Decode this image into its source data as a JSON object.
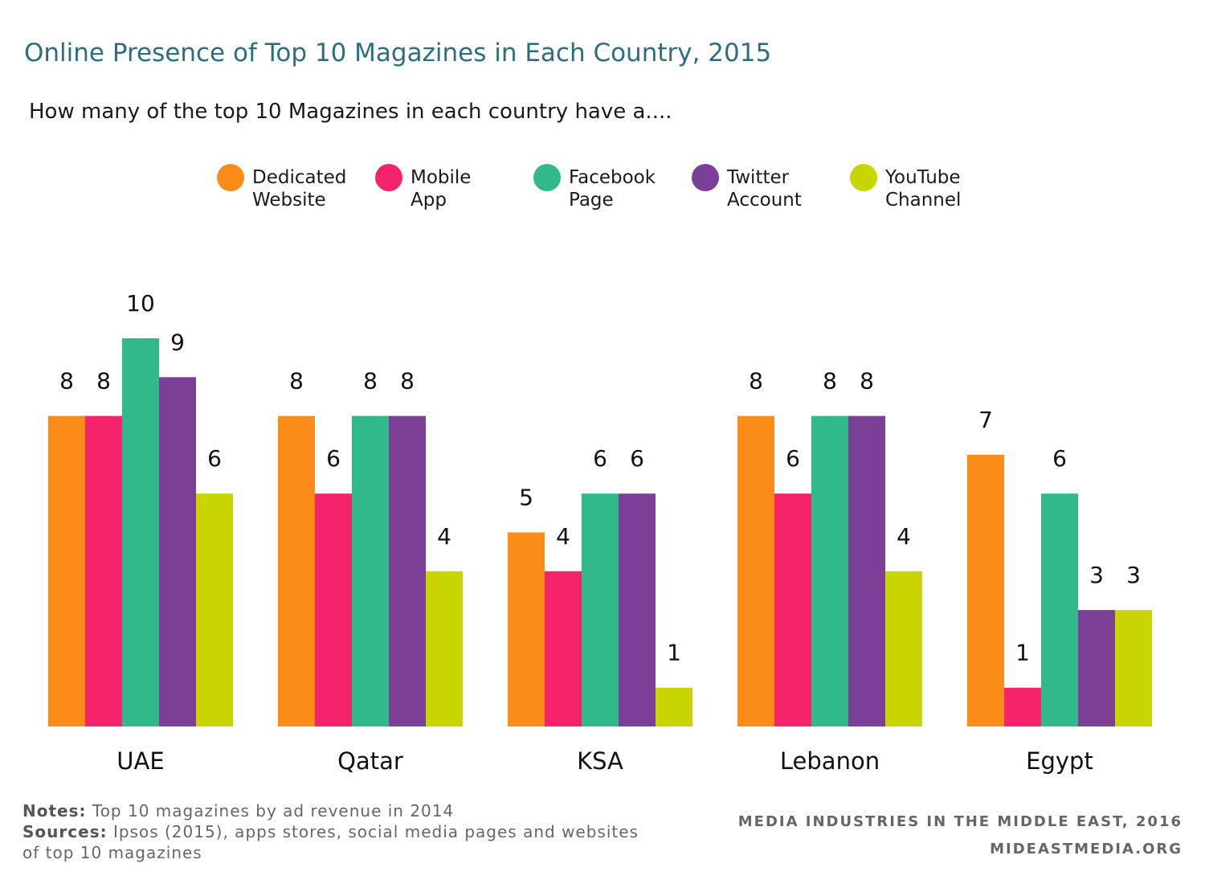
{
  "title": "Online Presence of Top 10 Magazines in Each Country, 2015",
  "subtitle": "How many of the top 10 Magazines in each country have a....",
  "chart_data": {
    "type": "bar",
    "categories": [
      "UAE",
      "Qatar",
      "KSA",
      "Lebanon",
      "Egypt"
    ],
    "series": [
      {
        "name": "Dedicated\nWebsite",
        "color": "#fb8c17",
        "values": [
          8,
          8,
          5,
          8,
          7
        ]
      },
      {
        "name": "Mobile\nApp",
        "color": "#f5236b",
        "values": [
          8,
          6,
          4,
          6,
          1
        ]
      },
      {
        "name": "Facebook\nPage",
        "color": "#31b98c",
        "values": [
          10,
          8,
          6,
          8,
          6
        ]
      },
      {
        "name": "Twitter\nAccount",
        "color": "#7c3f97",
        "values": [
          9,
          8,
          6,
          8,
          3
        ]
      },
      {
        "name": "YouTube\nChannel",
        "color": "#c8d500",
        "values": [
          6,
          4,
          1,
          4,
          3
        ]
      }
    ],
    "ylim": [
      0,
      10
    ],
    "grid": false,
    "legend_position": "top"
  },
  "notes": {
    "notes_label": "Notes:",
    "notes_text": "Top 10 magazines by ad revenue in 2014",
    "sources_label": "Sources:",
    "sources_text": "Ipsos (2015), apps stores, social media pages and websites of top 10 magazines"
  },
  "credit": {
    "line1": "MEDIA INDUSTRIES IN THE MIDDLE EAST, 2016",
    "line2": "MIDEASTMEDIA.ORG"
  }
}
